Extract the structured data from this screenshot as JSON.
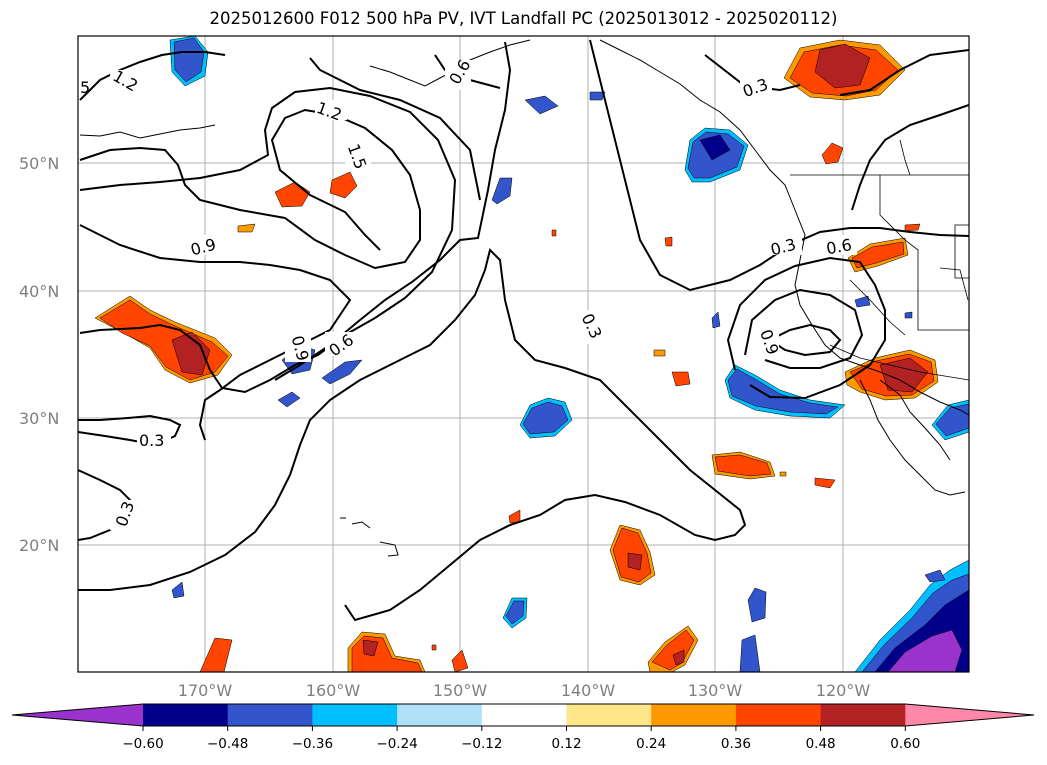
{
  "title": "2025012600 F012 500 hPa PV, IVT Landfall PC (2025013012 - 2025020112)",
  "lat_labels": [
    "50°N",
    "40°N",
    "30°N",
    "20°N"
  ],
  "lon_labels": [
    "170°W",
    "160°W",
    "150°W",
    "140°W",
    "130°W",
    "120°W"
  ],
  "contour_labels": [
    "1.2",
    "5",
    "1.2",
    "1.5",
    "0.6",
    "0.9",
    "0.9",
    "0.6",
    "0.3",
    "0.3",
    "0.3",
    "0.3",
    "0.6",
    "0.3",
    "0.9"
  ],
  "colorbar": {
    "ticks": [
      "−0.60",
      "−0.48",
      "−0.36",
      "−0.24",
      "−0.12",
      "0.12",
      "0.24",
      "0.36",
      "0.48",
      "0.60"
    ],
    "colors": [
      "#9933cc",
      "#00008b",
      "#3355cc",
      "#00bfff",
      "#aee0f8",
      "#ffffff",
      "#ffe68a",
      "#ff9900",
      "#ff4500",
      "#b22222",
      "#ff88aa"
    ]
  }
}
